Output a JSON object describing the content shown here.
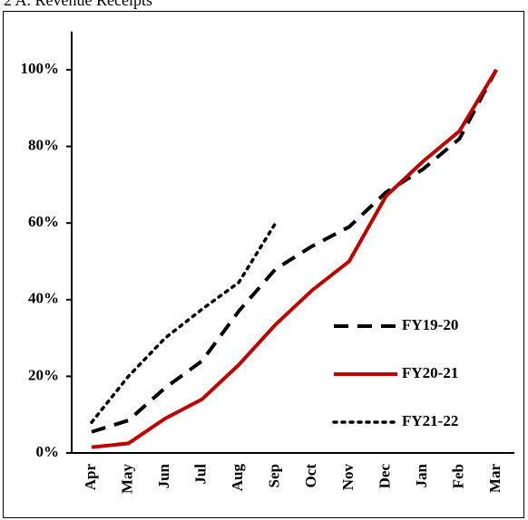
{
  "chart_data": {
    "type": "line",
    "title": "2 A. Revenue Receipts",
    "categories": [
      "Apr",
      "May",
      "Jun",
      "Jul",
      "Aug",
      "Sep",
      "Oct",
      "Nov",
      "Dec",
      "Jan",
      "Feb",
      "Mar"
    ],
    "series": [
      {
        "name": "FY19-20",
        "color": "#000000",
        "style": "dashed",
        "values": [
          5.5,
          8.5,
          17,
          24,
          37,
          48,
          54,
          59,
          68,
          74,
          82,
          100
        ]
      },
      {
        "name": "FY20-21",
        "color": "#c00000",
        "style": "solid",
        "values": [
          1.5,
          2.5,
          9,
          14,
          23,
          33.5,
          42.5,
          50,
          67,
          76,
          84,
          100
        ]
      },
      {
        "name": "FY21-22",
        "color": "#000000",
        "style": "dotted",
        "values": [
          8,
          20,
          30,
          37.5,
          44.5,
          60,
          null,
          null,
          null,
          null,
          null,
          null
        ]
      }
    ],
    "ylim": [
      0,
      110
    ],
    "yticks": [
      {
        "value": 0,
        "label": "0%"
      },
      {
        "value": 20,
        "label": "20%"
      },
      {
        "value": 40,
        "label": "40%"
      },
      {
        "value": 60,
        "label": "60%"
      },
      {
        "value": 80,
        "label": "80%"
      },
      {
        "value": 100,
        "label": "100%"
      }
    ],
    "grid": false,
    "legend": "right"
  }
}
